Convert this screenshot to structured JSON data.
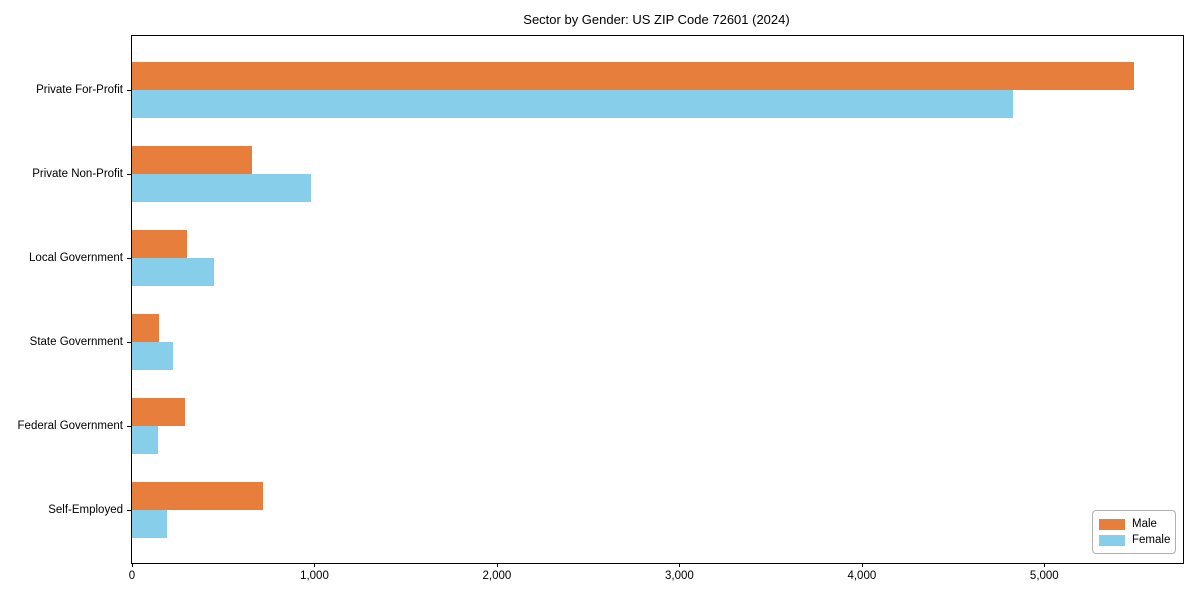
{
  "figure": {
    "background": "#ffffff",
    "spine_color": "#000000"
  },
  "chart_data": {
    "type": "bar",
    "orientation": "horizontal",
    "title": "Sector by Gender: US ZIP Code 72601 (2024)",
    "xlabel": "",
    "ylabel": "",
    "categories": [
      "Private For-Profit",
      "Private Non-Profit",
      "Local Government",
      "State Government",
      "Federal Government",
      "Self-Employed"
    ],
    "series": [
      {
        "name": "Male",
        "color": "#e87e3c",
        "values": [
          5490,
          660,
          300,
          150,
          290,
          720
        ]
      },
      {
        "name": "Female",
        "color": "#87ceeb",
        "values": [
          4830,
          980,
          450,
          225,
          140,
          190
        ]
      }
    ],
    "xlim": [
      0,
      5760
    ],
    "xticks": [
      0,
      1000,
      2000,
      3000,
      4000,
      5000
    ],
    "xtick_labels": [
      "0",
      "1,000",
      "2,000",
      "3,000",
      "4,000",
      "5,000"
    ],
    "grid": false,
    "legend": {
      "position": "lower right",
      "entries": [
        "Male",
        "Female"
      ]
    }
  }
}
